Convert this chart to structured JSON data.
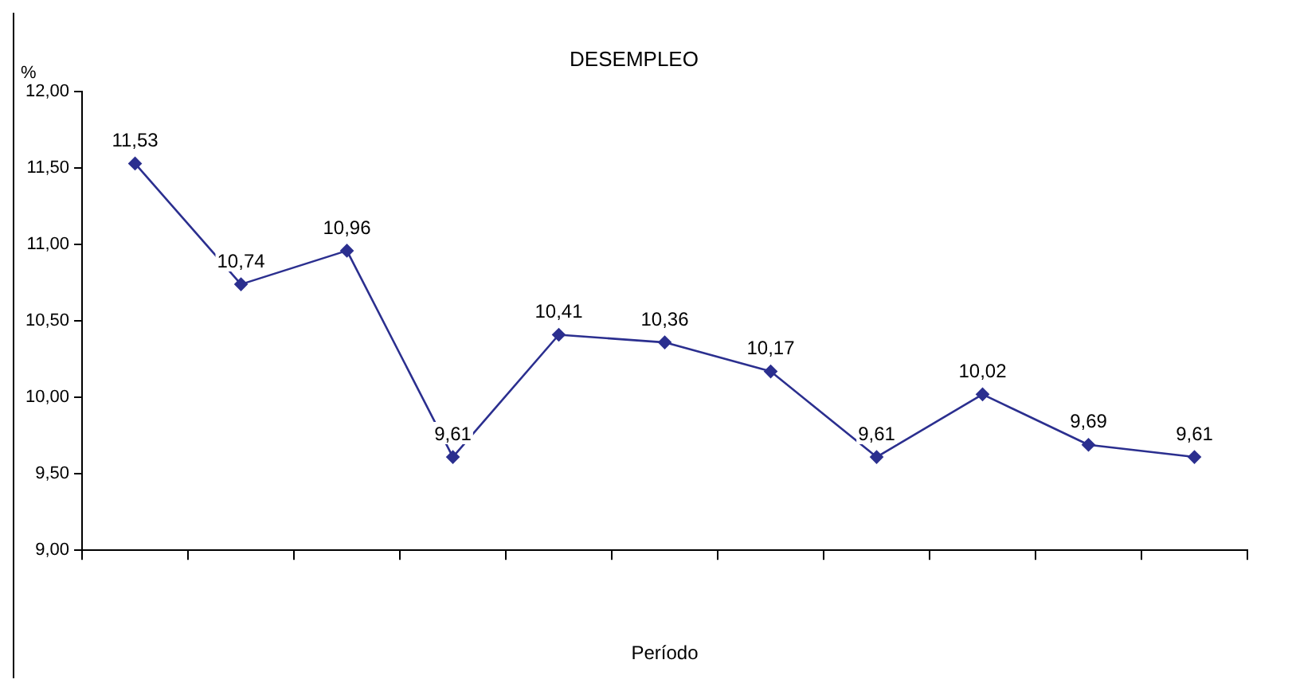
{
  "chart_data": {
    "type": "line",
    "title": "DESEMPLEO",
    "xlabel": "Período",
    "ylabel": "%",
    "categories": [
      null,
      null,
      null,
      null,
      null,
      null,
      null,
      null,
      null,
      null,
      null
    ],
    "series": [
      {
        "color": "#2b2f8f",
        "values": [
          11.53,
          10.74,
          10.96,
          9.61,
          10.41,
          10.36,
          10.17,
          9.61,
          10.02,
          9.69,
          9.61
        ],
        "value_labels": [
          "11,53",
          "10,74",
          "10,96",
          "9,61",
          "10,41",
          "10,36",
          "10,17",
          "9,61",
          "10,02",
          "9,69",
          "9,61"
        ]
      }
    ],
    "ylim": [
      9,
      12
    ],
    "yticks": [
      {
        "value": 9,
        "label": "9,00"
      },
      {
        "value": 9.5,
        "label": "9,50"
      },
      {
        "value": 10,
        "label": "10,00"
      },
      {
        "value": 10.5,
        "label": "10,50"
      },
      {
        "value": 11,
        "label": "11,00"
      },
      {
        "value": 11.5,
        "label": "11,50"
      },
      {
        "value": 12,
        "label": "12,00"
      }
    ],
    "grid": false,
    "legend": false,
    "marker": "diamond",
    "line_style": "solid",
    "tick_labels": "y"
  }
}
